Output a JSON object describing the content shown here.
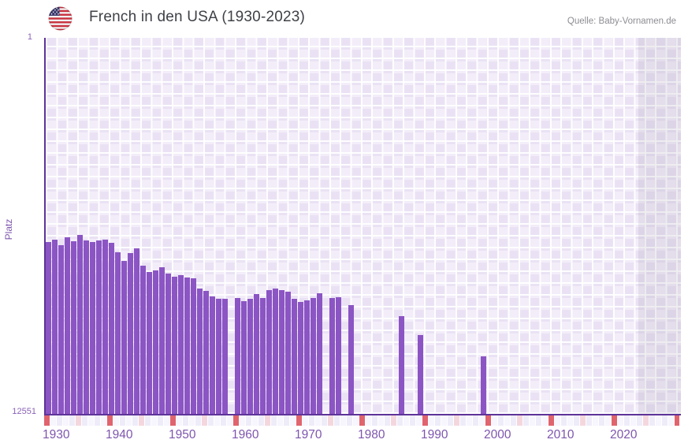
{
  "header": {
    "title": "French in den USA (1930-2023)",
    "source": "Quelle: Baby-Vornamen.de",
    "flag_icon": "us-flag-icon"
  },
  "y_axis_labels": {
    "top": "1",
    "bottom": "12551",
    "title": "Platz"
  },
  "chart_data": {
    "type": "bar",
    "title": "French in den USA (1930-2023)",
    "xlabel": "",
    "ylabel": "Platz",
    "legend": "none",
    "grid": "checkerboard background with white gridlines",
    "y_axis": {
      "min": 1,
      "max": 12551,
      "inverted": true,
      "tick_labels": [
        "1",
        "12551"
      ]
    },
    "x_axis": {
      "first_year": 1930,
      "last_data_year": 2023,
      "axis_end_year": 2030,
      "ticks": [
        1930,
        1940,
        1950,
        1960,
        1970,
        1980,
        1990,
        2000,
        2010,
        2020
      ],
      "tick_labels": [
        "1930",
        "1940",
        "1950",
        "1960",
        "1970",
        "1980",
        "1990",
        "2000",
        "2010",
        "2020"
      ]
    },
    "no_data_band": {
      "start_year": 2024,
      "end_year": 2030
    },
    "years": [
      1930,
      1931,
      1932,
      1933,
      1934,
      1935,
      1936,
      1937,
      1938,
      1939,
      1940,
      1941,
      1942,
      1943,
      1944,
      1945,
      1946,
      1947,
      1948,
      1949,
      1950,
      1951,
      1952,
      1953,
      1954,
      1955,
      1956,
      1957,
      1958,
      1959,
      1960,
      1961,
      1962,
      1963,
      1964,
      1965,
      1966,
      1967,
      1968,
      1969,
      1970,
      1971,
      1972,
      1973,
      1974,
      1975,
      1976,
      1977,
      1978,
      1979,
      1980,
      1981,
      1982,
      1983,
      1984,
      1985,
      1986,
      1987,
      1988,
      1989,
      1990,
      1991,
      1992,
      1993,
      1994,
      1995,
      1996,
      1997,
      1998,
      1999,
      2000,
      2001,
      2002,
      2003,
      2004,
      2005,
      2006,
      2007,
      2008,
      2009,
      2010,
      2011,
      2012,
      2013,
      2014,
      2015,
      2016,
      2017,
      2018,
      2019,
      2020,
      2021,
      2022,
      2023
    ],
    "values": [
      6815,
      6736,
      6920,
      6657,
      6789,
      6578,
      6762,
      6815,
      6762,
      6736,
      6841,
      7157,
      7446,
      7183,
      7025,
      7604,
      7815,
      7762,
      7657,
      7867,
      7972,
      7920,
      7999,
      8025,
      8367,
      8446,
      8630,
      8709,
      8709,
      null,
      8683,
      8788,
      8709,
      8551,
      8683,
      8420,
      8367,
      8420,
      8472,
      8709,
      8814,
      8762,
      8683,
      8525,
      null,
      8683,
      8656,
      null,
      8919,
      null,
      null,
      null,
      null,
      null,
      null,
      null,
      9300,
      null,
      null,
      9930,
      null,
      null,
      null,
      null,
      null,
      null,
      null,
      null,
      null,
      10630,
      null,
      null,
      null,
      null,
      null,
      null,
      null,
      null,
      null,
      null,
      null,
      null,
      null,
      null,
      null,
      null,
      null,
      null,
      null,
      null,
      null,
      null,
      null,
      null
    ]
  },
  "colors": {
    "bar": "#8b55c4",
    "axis_line": "#5e3399",
    "tick_label": "#7e56ae",
    "title_text": "#3e4147",
    "source_text": "#8d8d94",
    "strip_decade": "#e0646e",
    "strip_half_decade": "#f4d7de",
    "strip_even": "#efecf9",
    "strip_odd": "#f7f5fd",
    "plot_check_light": "#f3edf9",
    "plot_check_dark": "#eae2f4"
  }
}
